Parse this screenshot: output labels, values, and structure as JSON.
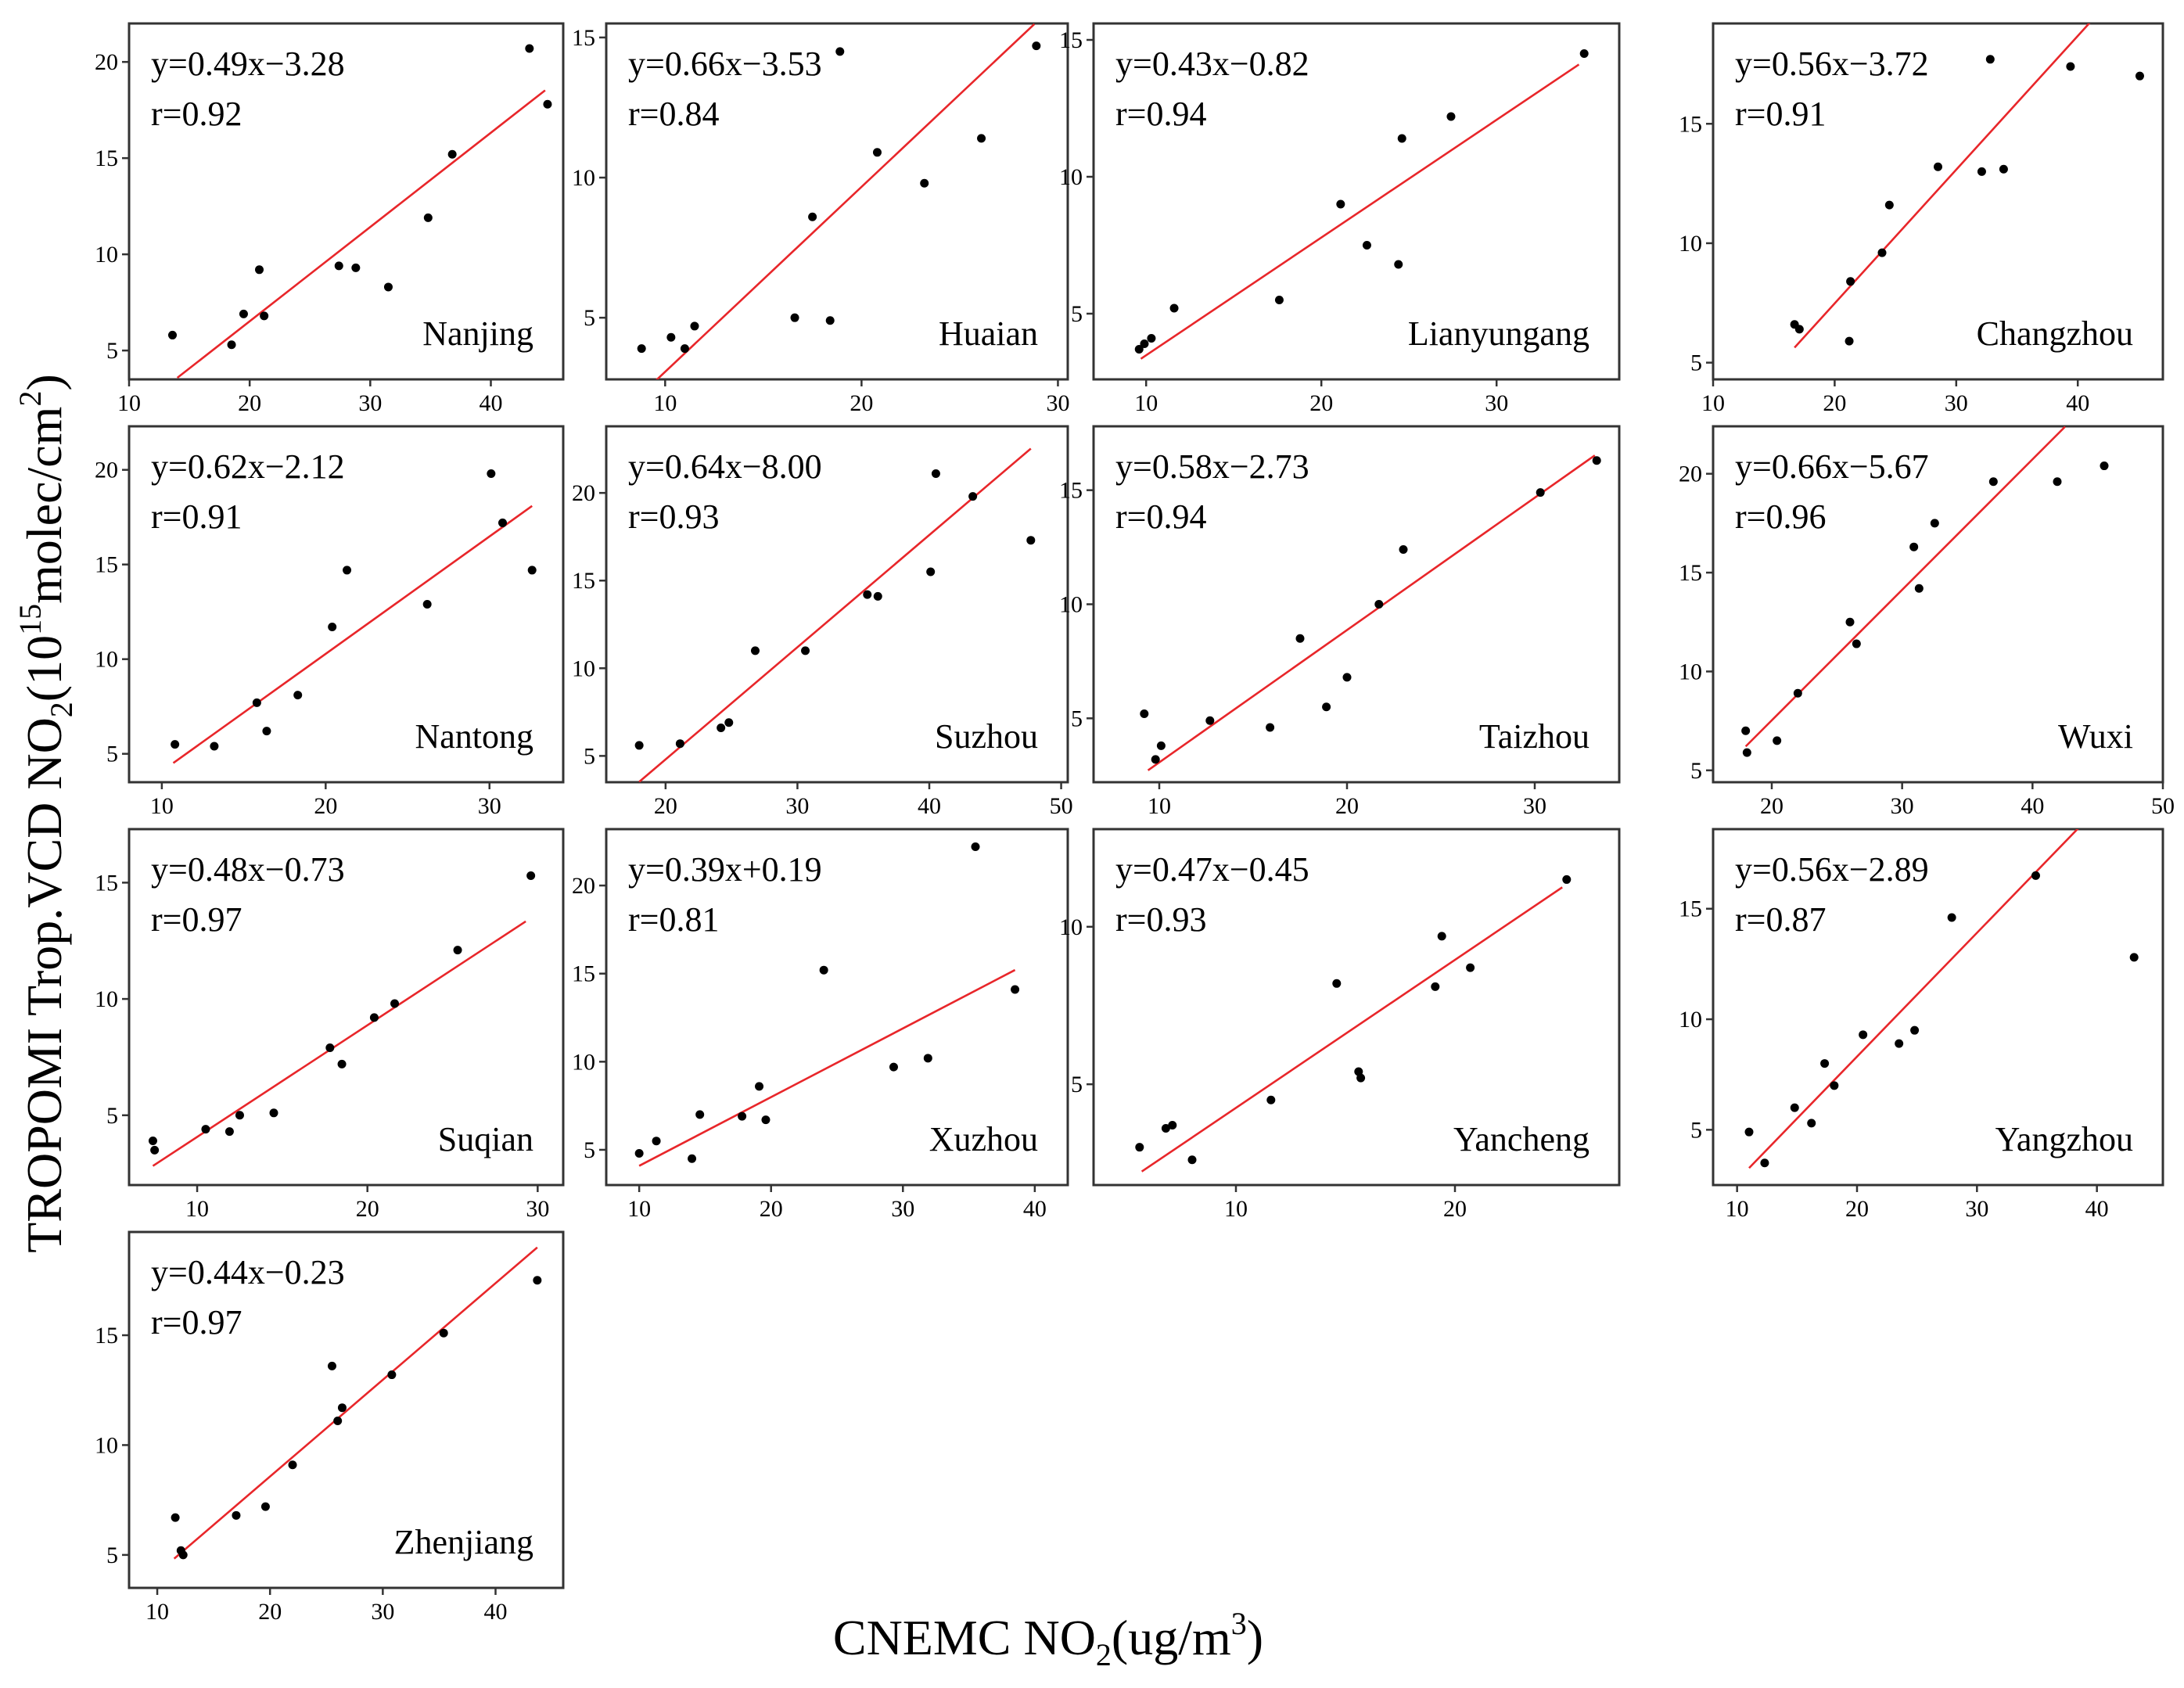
{
  "figure": {
    "y_axis_title": {
      "main": "TROPOMI Trop.VCD NO",
      "sub": "2",
      "mid": "(10",
      "sup": "15",
      "tail": "molec/cm",
      "sup2": "2",
      "end": ")"
    },
    "x_axis_title": {
      "main": "CNEMC NO",
      "sub": "2",
      "mid": "(ug/m",
      "sup": "3",
      "end": ")"
    }
  },
  "chart_data": [
    {
      "type": "scatter",
      "city": "Nanjing",
      "equation": "y=0.49x−3.28",
      "r_text": "r=0.92",
      "slope": 0.49,
      "intercept": -3.28,
      "xlim": [
        10,
        46
      ],
      "ylim": [
        3.5,
        22
      ],
      "xticks": [
        10,
        20,
        30,
        40
      ],
      "yticks": [
        5,
        10,
        15,
        20
      ],
      "fit_x": [
        14,
        44.5
      ],
      "points": [
        [
          13.6,
          5.8
        ],
        [
          18.5,
          5.3
        ],
        [
          19.5,
          6.9
        ],
        [
          20.8,
          9.2
        ],
        [
          21.2,
          6.8
        ],
        [
          27.4,
          9.4
        ],
        [
          28.8,
          9.3
        ],
        [
          31.5,
          8.3
        ],
        [
          34.8,
          11.9
        ],
        [
          36.8,
          15.2
        ],
        [
          43.2,
          20.7
        ],
        [
          44.7,
          17.8
        ]
      ]
    },
    {
      "type": "scatter",
      "city": "Huaian",
      "equation": "y=0.66x−3.53",
      "r_text": "r=0.84",
      "slope": 0.66,
      "intercept": -3.53,
      "xlim": [
        7,
        30.5
      ],
      "ylim": [
        2.8,
        15.5
      ],
      "xticks": [
        10,
        20,
        30
      ],
      "yticks": [
        5,
        10,
        15
      ],
      "fit_x": [
        8.7,
        28.8
      ],
      "points": [
        [
          8.8,
          3.9
        ],
        [
          10.3,
          4.3
        ],
        [
          11,
          3.9
        ],
        [
          11.5,
          4.7
        ],
        [
          16.6,
          5
        ],
        [
          17.5,
          8.6
        ],
        [
          18.4,
          4.9
        ],
        [
          18.9,
          14.5
        ],
        [
          20.8,
          10.9
        ],
        [
          23.2,
          9.8
        ],
        [
          26.1,
          11.4
        ],
        [
          28.9,
          14.7
        ]
      ]
    },
    {
      "type": "scatter",
      "city": "Lianyungang",
      "equation": "y=0.43x−0.82",
      "r_text": "r=0.94",
      "slope": 0.43,
      "intercept": -0.82,
      "xlim": [
        7,
        37
      ],
      "ylim": [
        2.6,
        15.6
      ],
      "xticks": [
        10,
        20,
        30
      ],
      "yticks": [
        5,
        10,
        15
      ],
      "fit_x": [
        9.7,
        34.7
      ],
      "points": [
        [
          9.6,
          3.7
        ],
        [
          9.9,
          3.9
        ],
        [
          10.3,
          4.1
        ],
        [
          11.6,
          5.2
        ],
        [
          17.6,
          5.5
        ],
        [
          21.1,
          9
        ],
        [
          22.6,
          7.5
        ],
        [
          24.4,
          6.8
        ],
        [
          24.6,
          11.4
        ],
        [
          27.4,
          12.2
        ],
        [
          35,
          14.5
        ]
      ]
    },
    {
      "type": "scatter",
      "city": "Changzhou",
      "equation": "y=0.56x−3.72",
      "r_text": "r=0.91",
      "slope": 0.56,
      "intercept": -3.72,
      "xlim": [
        10,
        47
      ],
      "ylim": [
        4.3,
        19.2
      ],
      "xticks": [
        10,
        20,
        30,
        40
      ],
      "yticks": [
        5,
        10,
        15
      ],
      "fit_x": [
        16.7,
        41.5
      ],
      "points": [
        [
          16.7,
          6.6
        ],
        [
          17.1,
          6.4
        ],
        [
          21.2,
          5.9
        ],
        [
          21.3,
          8.4
        ],
        [
          23.9,
          9.6
        ],
        [
          24.5,
          11.6
        ],
        [
          28.5,
          13.2
        ],
        [
          32.1,
          13
        ],
        [
          32.8,
          17.7
        ],
        [
          33.9,
          13.1
        ],
        [
          39.4,
          17.4
        ],
        [
          45.1,
          17
        ]
      ]
    },
    {
      "type": "scatter",
      "city": "Nantong",
      "equation": "y=0.62x−2.12",
      "r_text": "r=0.91",
      "slope": 0.62,
      "intercept": -2.12,
      "xlim": [
        8,
        34.5
      ],
      "ylim": [
        3.5,
        22.3
      ],
      "xticks": [
        10,
        20,
        30
      ],
      "yticks": [
        5,
        10,
        15,
        20
      ],
      "fit_x": [
        10.7,
        32.6
      ],
      "points": [
        [
          10.8,
          5.5
        ],
        [
          13.2,
          5.4
        ],
        [
          15.8,
          7.7
        ],
        [
          16.4,
          6.2
        ],
        [
          18.3,
          8.1
        ],
        [
          20.4,
          11.7
        ],
        [
          21.3,
          14.7
        ],
        [
          26.2,
          12.9
        ],
        [
          30.1,
          19.8
        ],
        [
          30.8,
          17.2
        ],
        [
          32.6,
          14.7
        ]
      ]
    },
    {
      "type": "scatter",
      "city": "Suzhou",
      "equation": "y=0.64x−8.00",
      "r_text": "r=0.93",
      "slope": 0.64,
      "intercept": -8.0,
      "xlim": [
        15.5,
        50.5
      ],
      "ylim": [
        3.5,
        23.8
      ],
      "xticks": [
        20,
        30,
        40,
        50
      ],
      "yticks": [
        5,
        10,
        15,
        20
      ],
      "fit_x": [
        18,
        47.7
      ],
      "points": [
        [
          18,
          5.6
        ],
        [
          21.1,
          5.7
        ],
        [
          24.2,
          6.6
        ],
        [
          24.8,
          6.9
        ],
        [
          26.8,
          11
        ],
        [
          30.6,
          11
        ],
        [
          35.3,
          14.2
        ],
        [
          36.1,
          14.1
        ],
        [
          40.1,
          15.5
        ],
        [
          40.5,
          21.1
        ],
        [
          43.3,
          19.8
        ],
        [
          47.7,
          17.3
        ]
      ]
    },
    {
      "type": "scatter",
      "city": "Taizhou",
      "equation": "y=0.58x−2.73",
      "r_text": "r=0.94",
      "slope": 0.58,
      "intercept": -2.73,
      "xlim": [
        6.5,
        34.5
      ],
      "ylim": [
        2.2,
        17.8
      ],
      "xticks": [
        10,
        20,
        30
      ],
      "yticks": [
        5,
        10,
        15
      ],
      "fit_x": [
        9.4,
        33.2
      ],
      "points": [
        [
          9.2,
          5.2
        ],
        [
          9.8,
          3.2
        ],
        [
          10.1,
          3.8
        ],
        [
          12.7,
          4.9
        ],
        [
          15.9,
          4.6
        ],
        [
          17.5,
          8.5
        ],
        [
          18.9,
          5.5
        ],
        [
          20,
          6.8
        ],
        [
          21.7,
          10
        ],
        [
          23,
          12.4
        ],
        [
          30.3,
          14.9
        ],
        [
          33.3,
          16.3
        ]
      ]
    },
    {
      "type": "scatter",
      "city": "Wuxi",
      "equation": "y=0.66x−5.67",
      "r_text": "r=0.96",
      "slope": 0.66,
      "intercept": -5.67,
      "xlim": [
        15.5,
        50
      ],
      "ylim": [
        4.4,
        22.4
      ],
      "xticks": [
        20,
        30,
        40,
        50
      ],
      "yticks": [
        5,
        10,
        15,
        20
      ],
      "fit_x": [
        18,
        42.5
      ],
      "points": [
        [
          18,
          7
        ],
        [
          18.1,
          5.9
        ],
        [
          20.4,
          6.5
        ],
        [
          22,
          8.9
        ],
        [
          26,
          12.5
        ],
        [
          26.5,
          11.4
        ],
        [
          30.9,
          16.3
        ],
        [
          31.3,
          14.2
        ],
        [
          32.5,
          17.5
        ],
        [
          37,
          19.6
        ],
        [
          41.9,
          19.6
        ],
        [
          45.5,
          20.4
        ]
      ]
    },
    {
      "type": "scatter",
      "city": "Suqian",
      "equation": "y=0.48x−0.73",
      "r_text": "r=0.97",
      "slope": 0.48,
      "intercept": -0.73,
      "xlim": [
        6,
        31.5
      ],
      "ylim": [
        2,
        17.3
      ],
      "xticks": [
        10,
        20,
        30
      ],
      "yticks": [
        5,
        10,
        15
      ],
      "fit_x": [
        7.4,
        29.3
      ],
      "points": [
        [
          7.4,
          3.9
        ],
        [
          7.5,
          3.5
        ],
        [
          10.5,
          4.4
        ],
        [
          11.9,
          4.3
        ],
        [
          12.5,
          5
        ],
        [
          14.5,
          5.1
        ],
        [
          17.8,
          7.9
        ],
        [
          18.5,
          7.2
        ],
        [
          20.4,
          9.2
        ],
        [
          21.6,
          9.8
        ],
        [
          25.3,
          12.1
        ],
        [
          29.6,
          15.3
        ]
      ]
    },
    {
      "type": "scatter",
      "city": "Xuzhou",
      "equation": "y=0.39x+0.19",
      "r_text": "r=0.81",
      "slope": 0.39,
      "intercept": 0.19,
      "xlim": [
        7.5,
        42.5
      ],
      "ylim": [
        3,
        23.2
      ],
      "xticks": [
        10,
        20,
        30,
        40
      ],
      "yticks": [
        5,
        10,
        15,
        20
      ],
      "fit_x": [
        10,
        38.5
      ],
      "points": [
        [
          10,
          4.8
        ],
        [
          11.3,
          5.5
        ],
        [
          14,
          4.5
        ],
        [
          14.6,
          7
        ],
        [
          17.8,
          6.9
        ],
        [
          19.1,
          8.6
        ],
        [
          19.6,
          6.7
        ],
        [
          24,
          15.2
        ],
        [
          29.3,
          9.7
        ],
        [
          31.9,
          10.2
        ],
        [
          35.5,
          22.2
        ],
        [
          38.5,
          14.1
        ]
      ]
    },
    {
      "type": "scatter",
      "city": "Yancheng",
      "equation": "y=0.47x−0.45",
      "r_text": "r=0.93",
      "slope": 0.47,
      "intercept": -0.45,
      "xlim": [
        3.5,
        27.5
      ],
      "ylim": [
        1.8,
        13.1
      ],
      "xticks": [
        10,
        20
      ],
      "yticks": [
        5,
        10
      ],
      "fit_x": [
        5.7,
        24.9
      ],
      "points": [
        [
          5.6,
          3
        ],
        [
          6.8,
          3.6
        ],
        [
          7.1,
          3.7
        ],
        [
          8,
          2.6
        ],
        [
          11.6,
          4.5
        ],
        [
          14.6,
          8.2
        ],
        [
          15.6,
          5.4
        ],
        [
          15.7,
          5.2
        ],
        [
          19.1,
          8.1
        ],
        [
          19.4,
          9.7
        ],
        [
          20.7,
          8.7
        ],
        [
          25.1,
          11.5
        ]
      ]
    },
    {
      "type": "scatter",
      "city": "Yangzhou",
      "equation": "y=0.56x−2.89",
      "r_text": "r=0.87",
      "slope": 0.56,
      "intercept": -2.89,
      "xlim": [
        8,
        45.5
      ],
      "ylim": [
        2.5,
        18.6
      ],
      "xticks": [
        10,
        20,
        30,
        40
      ],
      "yticks": [
        5,
        10,
        15
      ],
      "fit_x": [
        11,
        42.8
      ],
      "points": [
        [
          11,
          4.9
        ],
        [
          12.3,
          3.5
        ],
        [
          14.8,
          6
        ],
        [
          16.2,
          5.3
        ],
        [
          17.3,
          8
        ],
        [
          18.1,
          7
        ],
        [
          20.5,
          9.3
        ],
        [
          23.5,
          8.9
        ],
        [
          24.8,
          9.5
        ],
        [
          27.9,
          14.6
        ],
        [
          34.9,
          16.5
        ],
        [
          43.1,
          12.8
        ]
      ]
    },
    {
      "type": "scatter",
      "city": "Zhenjiang",
      "equation": "y=0.44x−0.23",
      "r_text": "r=0.97",
      "slope": 0.44,
      "intercept": -0.23,
      "xlim": [
        7.5,
        46
      ],
      "ylim": [
        3.5,
        19.7
      ],
      "xticks": [
        10,
        20,
        30,
        40
      ],
      "yticks": [
        5,
        10,
        15
      ],
      "fit_x": [
        11.5,
        43.7
      ],
      "points": [
        [
          11.6,
          6.7
        ],
        [
          12.1,
          5.2
        ],
        [
          12.3,
          5
        ],
        [
          17,
          6.8
        ],
        [
          19.6,
          7.2
        ],
        [
          22,
          9.1
        ],
        [
          25.5,
          13.6
        ],
        [
          26,
          11.1
        ],
        [
          26.4,
          11.7
        ],
        [
          30.8,
          13.2
        ],
        [
          35.4,
          15.1
        ],
        [
          43.7,
          17.5
        ]
      ]
    }
  ]
}
